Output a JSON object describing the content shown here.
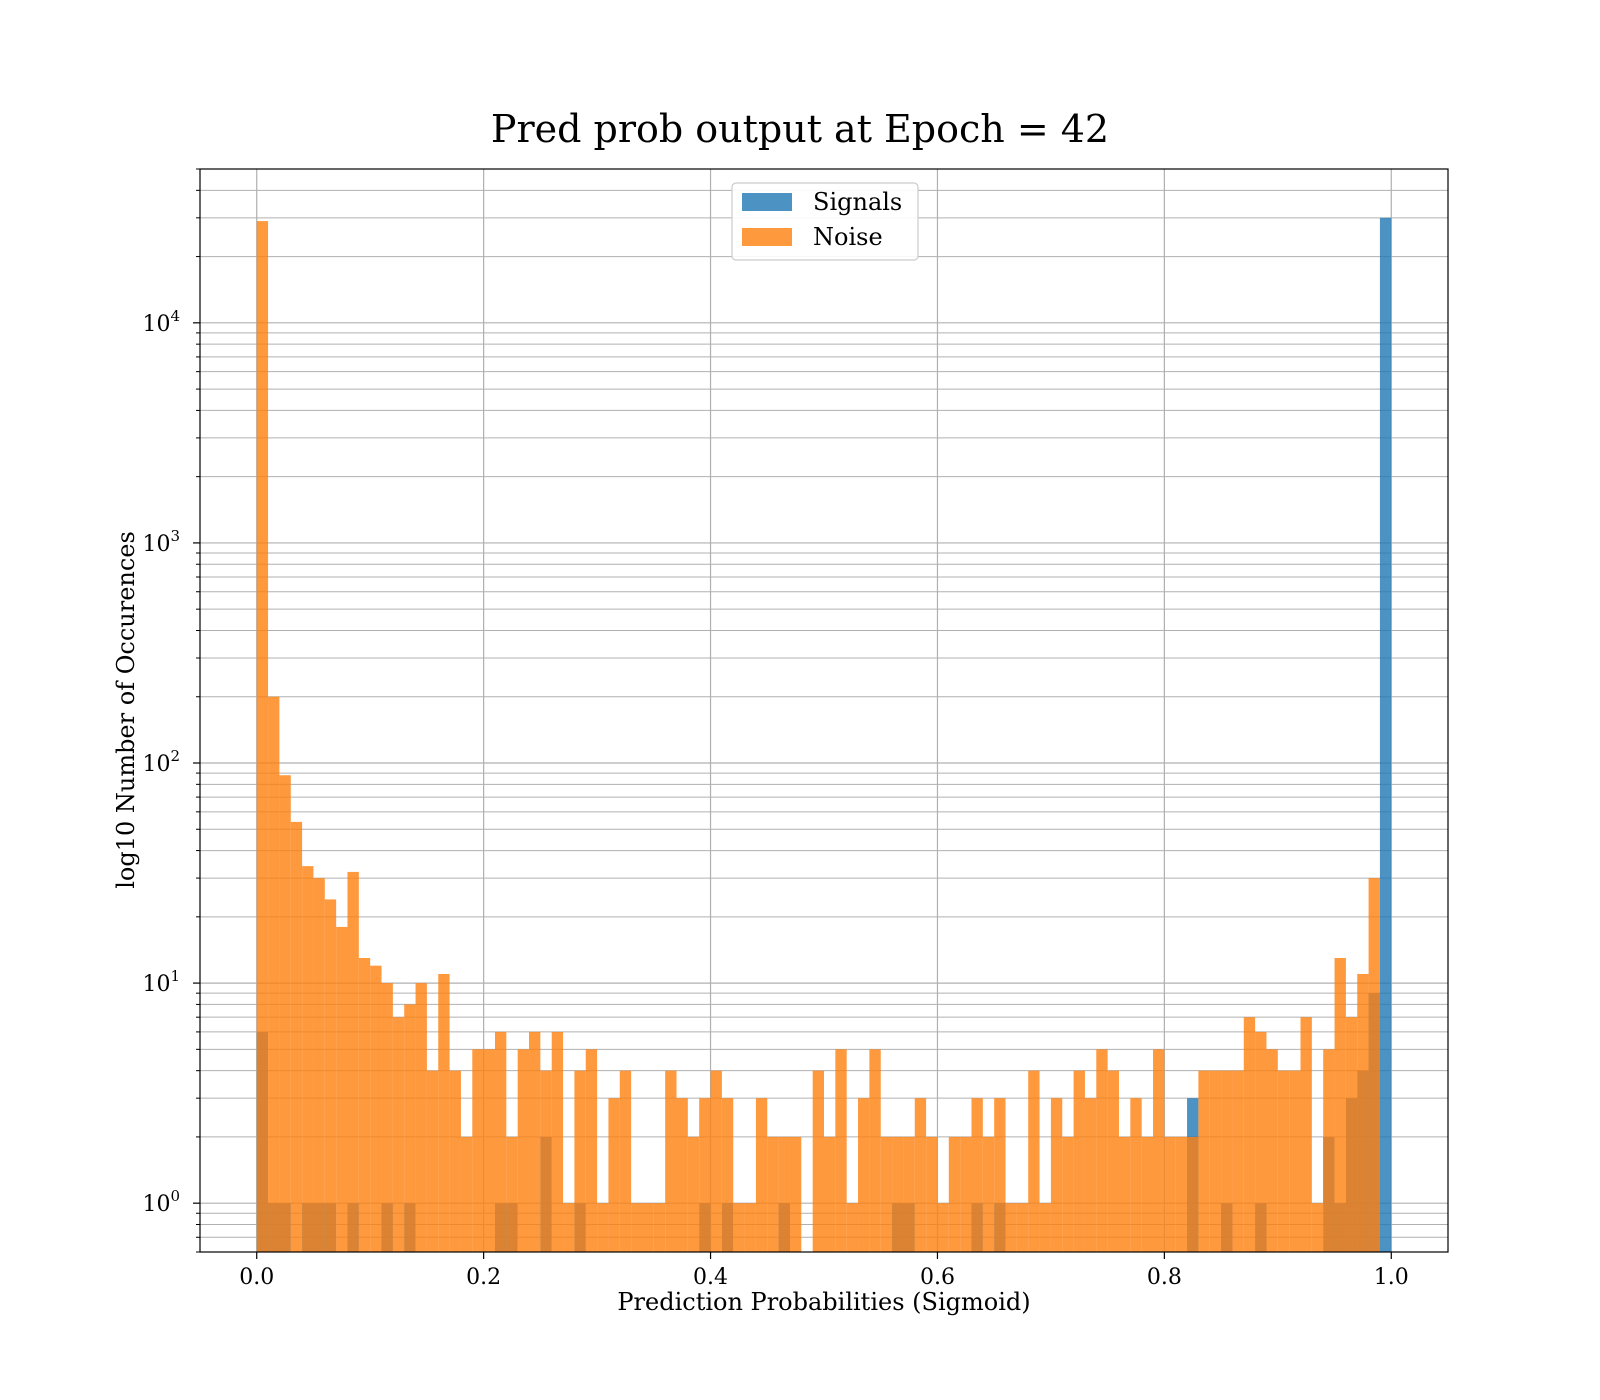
{
  "chart_data": {
    "type": "bar",
    "title": "Pred prob output at Epoch = 42",
    "xlabel": "Prediction Probabilities (Sigmoid)",
    "ylabel": "log10 Number of Occurences",
    "xlim": [
      -0.05,
      1.05
    ],
    "ylim": [
      0.6,
      50000
    ],
    "yscale": "log",
    "grid": true,
    "legend_position": "upper center",
    "bins": 100,
    "x_ticks": [
      {
        "value": 0.0,
        "label": "0.0"
      },
      {
        "value": 0.2,
        "label": "0.2"
      },
      {
        "value": 0.4,
        "label": "0.4"
      },
      {
        "value": 0.6,
        "label": "0.6"
      },
      {
        "value": 0.8,
        "label": "0.8"
      },
      {
        "value": 1.0,
        "label": "1.0"
      }
    ],
    "y_ticks": [
      {
        "value": 1,
        "base": "10",
        "exp": "0"
      },
      {
        "value": 10,
        "base": "10",
        "exp": "1"
      },
      {
        "value": 100,
        "base": "10",
        "exp": "2"
      },
      {
        "value": 1000,
        "base": "10",
        "exp": "3"
      },
      {
        "value": 10000,
        "base": "10",
        "exp": "4"
      }
    ],
    "series": [
      {
        "name": "Signals",
        "color": "#1f77b4",
        "counts": [
          6,
          1,
          1,
          0,
          1,
          1,
          1,
          0,
          1,
          0,
          0,
          1,
          0,
          1,
          0,
          0,
          0,
          0,
          0,
          0,
          0,
          1,
          1,
          0,
          0,
          2,
          0,
          0,
          1,
          0,
          0,
          0,
          0,
          0,
          0,
          0,
          0,
          0,
          0,
          1,
          0,
          1,
          0,
          0,
          0,
          0,
          1,
          0,
          0,
          0,
          0,
          0,
          0,
          0,
          0,
          0,
          1,
          1,
          0,
          0,
          0,
          0,
          0,
          1,
          0,
          1,
          0,
          0,
          0,
          0,
          0,
          0,
          0,
          0,
          0,
          0,
          0,
          0,
          0,
          0,
          0,
          0,
          3,
          0,
          0,
          1,
          0,
          0,
          1,
          0,
          0,
          0,
          0,
          0,
          2,
          1,
          3,
          4,
          9,
          30000
        ]
      },
      {
        "name": "Noise",
        "color": "#ff7f0e",
        "counts": [
          29000,
          200,
          88,
          54,
          34,
          30,
          24,
          18,
          32,
          13,
          12,
          10,
          7,
          8,
          10,
          4,
          11,
          4,
          2,
          5,
          5,
          6,
          2,
          5,
          6,
          4,
          6,
          1,
          4,
          5,
          1,
          3,
          4,
          1,
          1,
          1,
          4,
          3,
          2,
          3,
          4,
          3,
          1,
          1,
          3,
          2,
          2,
          2,
          0,
          4,
          2,
          5,
          1,
          3,
          5,
          2,
          2,
          2,
          3,
          2,
          1,
          2,
          2,
          3,
          2,
          3,
          1,
          1,
          4,
          1,
          3,
          2,
          4,
          3,
          5,
          4,
          2,
          3,
          2,
          5,
          2,
          2,
          2,
          4,
          4,
          4,
          4,
          7,
          6,
          5,
          4,
          4,
          7,
          1,
          5,
          13,
          7,
          11,
          30,
          0
        ]
      }
    ]
  }
}
